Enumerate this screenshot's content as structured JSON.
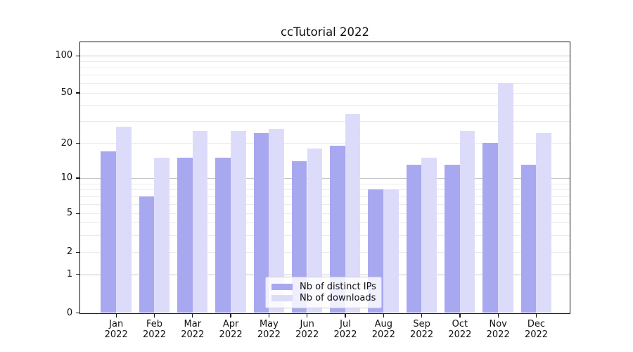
{
  "chart_data": {
    "type": "bar",
    "title": "ccTutorial 2022",
    "categories": [
      "Jan 2022",
      "Feb 2022",
      "Mar 2022",
      "Apr 2022",
      "May 2022",
      "Jun 2022",
      "Jul 2022",
      "Aug 2022",
      "Sep 2022",
      "Oct 2022",
      "Nov 2022",
      "Dec 2022"
    ],
    "series": [
      {
        "name": "Nb of distinct IPs",
        "color": "#a8a8f0",
        "values": [
          17,
          7,
          15,
          15,
          24,
          14,
          19,
          8,
          13,
          13,
          20,
          13
        ]
      },
      {
        "name": "Nb of downloads",
        "color": "#dcdcfa",
        "values": [
          27,
          15,
          25,
          25,
          26,
          18,
          34,
          8,
          15,
          25,
          60,
          24
        ]
      }
    ],
    "xlabel": "",
    "ylabel": "",
    "yscale": "symlog",
    "y_ticks": [
      100,
      50,
      20,
      10,
      5,
      2,
      1,
      0
    ],
    "ylim": [
      0,
      130
    ],
    "grid": "both",
    "legend_position": "lower center"
  }
}
